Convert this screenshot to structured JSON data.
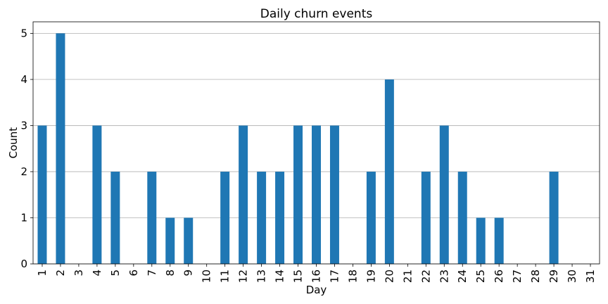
{
  "chart_data": {
    "type": "bar",
    "title": "Daily churn events",
    "xlabel": "Day",
    "ylabel": "Count",
    "categories": [
      "1",
      "2",
      "3",
      "4",
      "5",
      "6",
      "7",
      "8",
      "9",
      "10",
      "11",
      "12",
      "13",
      "14",
      "15",
      "16",
      "17",
      "18",
      "19",
      "20",
      "21",
      "22",
      "23",
      "24",
      "25",
      "26",
      "27",
      "28",
      "29",
      "30",
      "31"
    ],
    "values": [
      3,
      5,
      0,
      3,
      2,
      0,
      2,
      1,
      1,
      0,
      2,
      3,
      2,
      2,
      3,
      3,
      3,
      0,
      2,
      4,
      0,
      2,
      3,
      2,
      1,
      1,
      0,
      0,
      2,
      0,
      0
    ],
    "ylim": [
      0,
      5.25
    ],
    "yticks": [
      0,
      1,
      2,
      3,
      4,
      5
    ],
    "grid": "horizontal",
    "legend": "none",
    "bar_color": "#1f77b4"
  }
}
